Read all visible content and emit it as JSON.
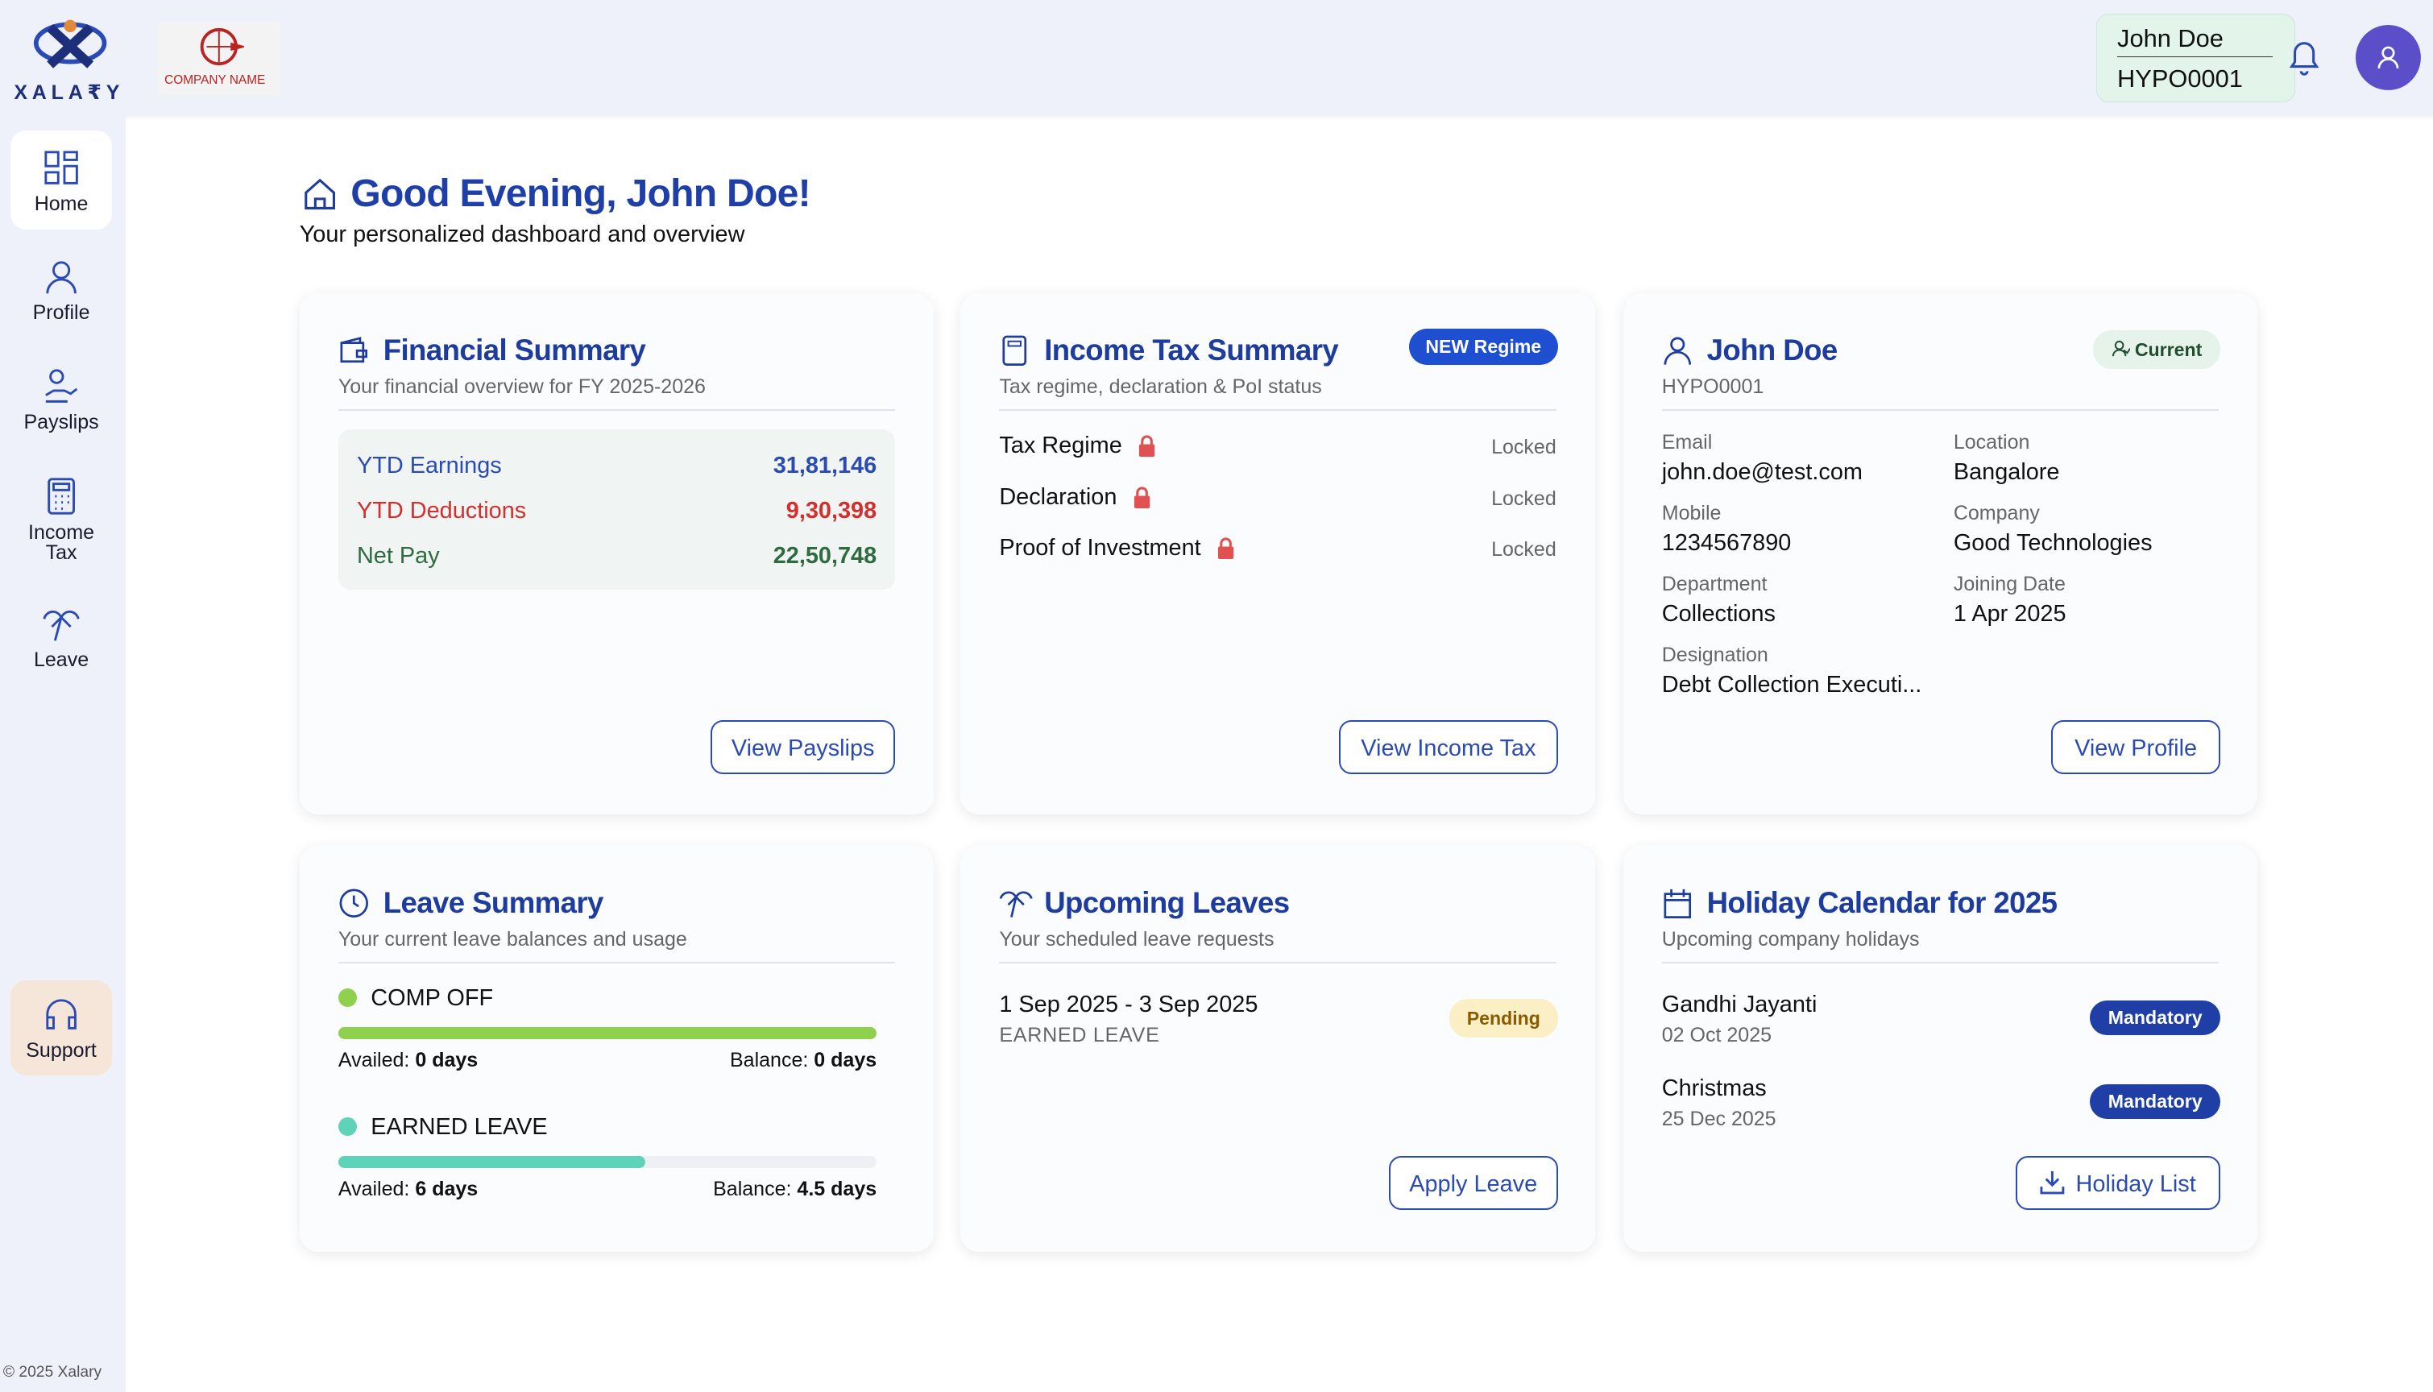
{
  "brand": {
    "logo_text": "XALA₹Y",
    "company_logo_text": "COMPANY NAME"
  },
  "header": {
    "user_name": "John Doe",
    "user_id": "HYPO0001"
  },
  "sidebar": {
    "items": [
      "Home",
      "Profile",
      "Payslips",
      "Income Tax",
      "Leave"
    ],
    "support": "Support",
    "footer": "© 2025 Xalary"
  },
  "greeting": {
    "title": "Good Evening, John Doe!",
    "subtitle": "Your personalized dashboard and overview"
  },
  "financial_summary": {
    "title": "Financial Summary",
    "subtitle": "Your financial overview for FY 2025-2026",
    "rows": [
      {
        "label": "YTD Earnings",
        "value": "31,81,146"
      },
      {
        "label": "YTD Deductions",
        "value": "9,30,398"
      },
      {
        "label": "Net Pay",
        "value": "22,50,748"
      }
    ],
    "button": "View Payslips"
  },
  "income_tax_summary": {
    "title": "Income Tax Summary",
    "badge": "NEW Regime",
    "subtitle": "Tax regime, declaration & PoI status",
    "rows": [
      {
        "label": "Tax Regime",
        "status": "Locked"
      },
      {
        "label": "Declaration",
        "status": "Locked"
      },
      {
        "label": "Proof of Investment",
        "status": "Locked"
      }
    ],
    "button": "View Income Tax"
  },
  "profile": {
    "name": "John Doe",
    "id": "HYPO0001",
    "status": "Current",
    "fields": [
      {
        "label": "Email",
        "value": "john.doe@test.com"
      },
      {
        "label": "Location",
        "value": "Bangalore"
      },
      {
        "label": "Mobile",
        "value": "1234567890"
      },
      {
        "label": "Company",
        "value": "Good Technologies"
      },
      {
        "label": "Department",
        "value": "Collections"
      },
      {
        "label": "Joining Date",
        "value": "1 Apr 2025"
      },
      {
        "label": "Designation",
        "value": "Debt Collection Executi..."
      }
    ],
    "button": "View Profile"
  },
  "leave_summary": {
    "title": "Leave Summary",
    "subtitle": "Your current leave balances and usage",
    "leaves": [
      {
        "name": "COMP OFF",
        "availed_label": "Availed:",
        "availed": "0 days",
        "balance_label": "Balance:",
        "balance": "0 days"
      },
      {
        "name": "EARNED LEAVE",
        "availed_label": "Availed:",
        "availed": "6 days",
        "balance_label": "Balance:",
        "balance": "4.5 days"
      }
    ]
  },
  "upcoming_leaves": {
    "title": "Upcoming Leaves",
    "subtitle": "Your scheduled leave requests",
    "items": [
      {
        "dates": "1 Sep 2025 - 3 Sep 2025",
        "type": "EARNED LEAVE",
        "status": "Pending"
      }
    ],
    "button": "Apply Leave"
  },
  "holidays": {
    "title": "Holiday Calendar for 2025",
    "subtitle": "Upcoming company holidays",
    "items": [
      {
        "name": "Gandhi Jayanti",
        "date": "02 Oct 2025",
        "tag": "Mandatory"
      },
      {
        "name": "Christmas",
        "date": "25 Dec 2025",
        "tag": "Mandatory"
      }
    ],
    "button": "Holiday List"
  }
}
